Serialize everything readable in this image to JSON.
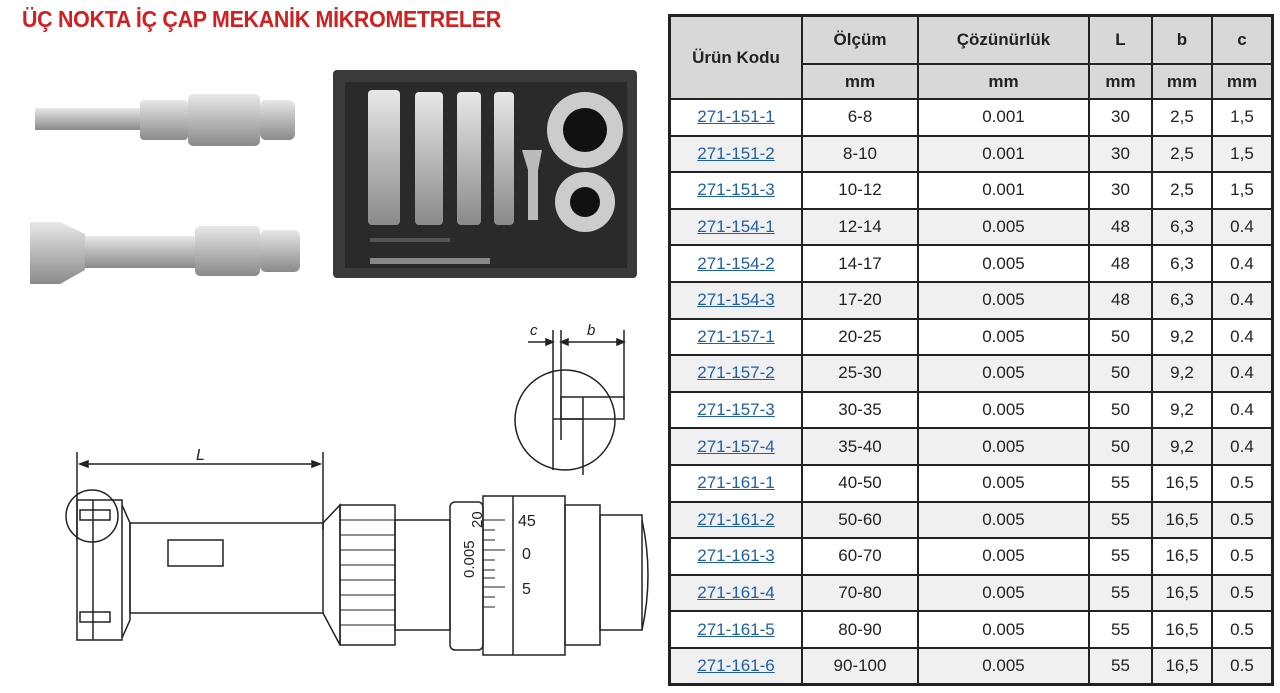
{
  "title": "ÜÇ NOKTA İÇ ÇAP MEKANİK MİKROMETRELER",
  "drawing": {
    "dim_L": "L",
    "dim_b": "b",
    "dim_c": "c",
    "thimble_45": "45",
    "thimble_0": "0",
    "thimble_5": "5",
    "resolution_mark": "0.005",
    "sleeve_mark": "20"
  },
  "table": {
    "headers": [
      "Ürün Kodu",
      "Ölçüm",
      "Çözünürlük",
      "L",
      "b",
      "c"
    ],
    "units": [
      "mm",
      "mm",
      "mm",
      "mm",
      "mm"
    ],
    "rows": [
      [
        "271-151-1",
        "6-8",
        "0.001",
        "30",
        "2,5",
        "1,5"
      ],
      [
        "271-151-2",
        "8-10",
        "0.001",
        "30",
        "2,5",
        "1,5"
      ],
      [
        "271-151-3",
        "10-12",
        "0.001",
        "30",
        "2,5",
        "1,5"
      ],
      [
        "271-154-1",
        "12-14",
        "0.005",
        "48",
        "6,3",
        "0.4"
      ],
      [
        "271-154-2",
        "14-17",
        "0.005",
        "48",
        "6,3",
        "0.4"
      ],
      [
        "271-154-3",
        "17-20",
        "0.005",
        "48",
        "6,3",
        "0.4"
      ],
      [
        "271-157-1",
        "20-25",
        "0.005",
        "50",
        "9,2",
        "0.4"
      ],
      [
        "271-157-2",
        "25-30",
        "0.005",
        "50",
        "9,2",
        "0.4"
      ],
      [
        "271-157-3",
        "30-35",
        "0.005",
        "50",
        "9,2",
        "0.4"
      ],
      [
        "271-157-4",
        "35-40",
        "0.005",
        "50",
        "9,2",
        "0.4"
      ],
      [
        "271-161-1",
        "40-50",
        "0.005",
        "55",
        "16,5",
        "0.5"
      ],
      [
        "271-161-2",
        "50-60",
        "0.005",
        "55",
        "16,5",
        "0.5"
      ],
      [
        "271-161-3",
        "60-70",
        "0.005",
        "55",
        "16,5",
        "0.5"
      ],
      [
        "271-161-4",
        "70-80",
        "0.005",
        "55",
        "16,5",
        "0.5"
      ],
      [
        "271-161-5",
        "80-90",
        "0.005",
        "55",
        "16,5",
        "0.5"
      ],
      [
        "271-161-6",
        "90-100",
        "0.005",
        "55",
        "16,5",
        "0.5"
      ]
    ]
  },
  "colors": {
    "title": "#d21f1f",
    "link": "#1f5fa8",
    "header_bg": "#d8d8d8",
    "alt_row_bg": "#f0f0f0"
  }
}
